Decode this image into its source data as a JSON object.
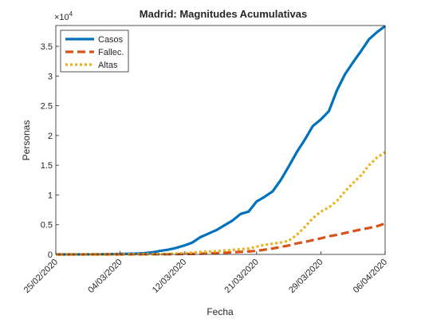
{
  "chart_data": {
    "type": "line",
    "title": "Madrid: Magnitudes Acumulativas",
    "xlabel": "Fecha",
    "ylabel": "Personas",
    "exponent_label": "×10",
    "exponent_power": "4",
    "x_range": [
      "2020-02-25",
      "2020-04-06"
    ],
    "ylim": [
      0,
      38500
    ],
    "x_ticks": [
      {
        "date": "2020-02-25",
        "label": "25/02/2020"
      },
      {
        "date": "2020-03-04",
        "label": "04/03/2020"
      },
      {
        "date": "2020-03-12",
        "label": "12/03/2020"
      },
      {
        "date": "2020-03-21",
        "label": "21/03/2020"
      },
      {
        "date": "2020-03-29",
        "label": "29/03/2020"
      },
      {
        "date": "2020-04-06",
        "label": "06/04/2020"
      }
    ],
    "y_ticks": [
      {
        "value": 0,
        "label": "0"
      },
      {
        "value": 5000,
        "label": "0.5"
      },
      {
        "value": 10000,
        "label": "1"
      },
      {
        "value": 15000,
        "label": "1.5"
      },
      {
        "value": 20000,
        "label": "2"
      },
      {
        "value": 25000,
        "label": "2.5"
      },
      {
        "value": 30000,
        "label": "3"
      },
      {
        "value": 35000,
        "label": "3.5"
      }
    ],
    "grid": false,
    "legend_position": "top-left",
    "series": [
      {
        "name": "Casos",
        "color": "#0072bd",
        "style": "solid",
        "points": [
          [
            "2020-02-25",
            0
          ],
          [
            "2020-02-26",
            0
          ],
          [
            "2020-02-27",
            0
          ],
          [
            "2020-02-28",
            0
          ],
          [
            "2020-02-29",
            10
          ],
          [
            "2020-03-01",
            20
          ],
          [
            "2020-03-02",
            30
          ],
          [
            "2020-03-03",
            50
          ],
          [
            "2020-03-04",
            80
          ],
          [
            "2020-03-05",
            100
          ],
          [
            "2020-03-06",
            130
          ],
          [
            "2020-03-07",
            200
          ],
          [
            "2020-03-08",
            350
          ],
          [
            "2020-03-09",
            600
          ],
          [
            "2020-03-10",
            800
          ],
          [
            "2020-03-11",
            1100
          ],
          [
            "2020-03-12",
            1500
          ],
          [
            "2020-03-13",
            2000
          ],
          [
            "2020-03-14",
            2900
          ],
          [
            "2020-03-15",
            3500
          ],
          [
            "2020-03-16",
            4100
          ],
          [
            "2020-03-17",
            4900
          ],
          [
            "2020-03-18",
            5700
          ],
          [
            "2020-03-19",
            6800
          ],
          [
            "2020-03-20",
            7200
          ],
          [
            "2020-03-21",
            8900
          ],
          [
            "2020-03-22",
            9700
          ],
          [
            "2020-03-23",
            10600
          ],
          [
            "2020-03-24",
            12500
          ],
          [
            "2020-03-25",
            14800
          ],
          [
            "2020-03-26",
            17200
          ],
          [
            "2020-03-27",
            19300
          ],
          [
            "2020-03-28",
            21600
          ],
          [
            "2020-03-29",
            22700
          ],
          [
            "2020-03-30",
            24100
          ],
          [
            "2020-03-31",
            27600
          ],
          [
            "2020-04-01",
            30300
          ],
          [
            "2020-04-02",
            32300
          ],
          [
            "2020-04-03",
            34200
          ],
          [
            "2020-04-04",
            36200
          ],
          [
            "2020-04-05",
            37400
          ],
          [
            "2020-04-06",
            38400
          ]
        ]
      },
      {
        "name": "Fallec.",
        "color": "#d95319",
        "style": "dashed",
        "points": [
          [
            "2020-02-25",
            0
          ],
          [
            "2020-03-05",
            0
          ],
          [
            "2020-03-10",
            30
          ],
          [
            "2020-03-12",
            60
          ],
          [
            "2020-03-14",
            120
          ],
          [
            "2020-03-16",
            210
          ],
          [
            "2020-03-18",
            350
          ],
          [
            "2020-03-20",
            500
          ],
          [
            "2020-03-21",
            600
          ],
          [
            "2020-03-22",
            800
          ],
          [
            "2020-03-23",
            1000
          ],
          [
            "2020-03-24",
            1250
          ],
          [
            "2020-03-25",
            1500
          ],
          [
            "2020-03-26",
            1850
          ],
          [
            "2020-03-27",
            2100
          ],
          [
            "2020-03-28",
            2400
          ],
          [
            "2020-03-29",
            2700
          ],
          [
            "2020-03-30",
            3050
          ],
          [
            "2020-03-31",
            3300
          ],
          [
            "2020-04-01",
            3600
          ],
          [
            "2020-04-02",
            3900
          ],
          [
            "2020-04-03",
            4200
          ],
          [
            "2020-04-04",
            4450
          ],
          [
            "2020-04-05",
            4750
          ],
          [
            "2020-04-06",
            5200
          ]
        ]
      },
      {
        "name": "Altas",
        "color": "#edb120",
        "style": "dotted",
        "points": [
          [
            "2020-02-25",
            0
          ],
          [
            "2020-03-05",
            0
          ],
          [
            "2020-03-09",
            50
          ],
          [
            "2020-03-12",
            200
          ],
          [
            "2020-03-14",
            400
          ],
          [
            "2020-03-16",
            550
          ],
          [
            "2020-03-18",
            750
          ],
          [
            "2020-03-20",
            1000
          ],
          [
            "2020-03-21",
            1300
          ],
          [
            "2020-03-22",
            1600
          ],
          [
            "2020-03-23",
            1800
          ],
          [
            "2020-03-24",
            2000
          ],
          [
            "2020-03-25",
            2300
          ],
          [
            "2020-03-26",
            3300
          ],
          [
            "2020-03-27",
            4600
          ],
          [
            "2020-03-28",
            6100
          ],
          [
            "2020-03-29",
            7200
          ],
          [
            "2020-03-30",
            7900
          ],
          [
            "2020-03-31",
            9000
          ],
          [
            "2020-04-01",
            10600
          ],
          [
            "2020-04-02",
            12000
          ],
          [
            "2020-04-03",
            13300
          ],
          [
            "2020-04-04",
            15000
          ],
          [
            "2020-04-05",
            16300
          ],
          [
            "2020-04-06",
            17200
          ]
        ]
      }
    ]
  }
}
